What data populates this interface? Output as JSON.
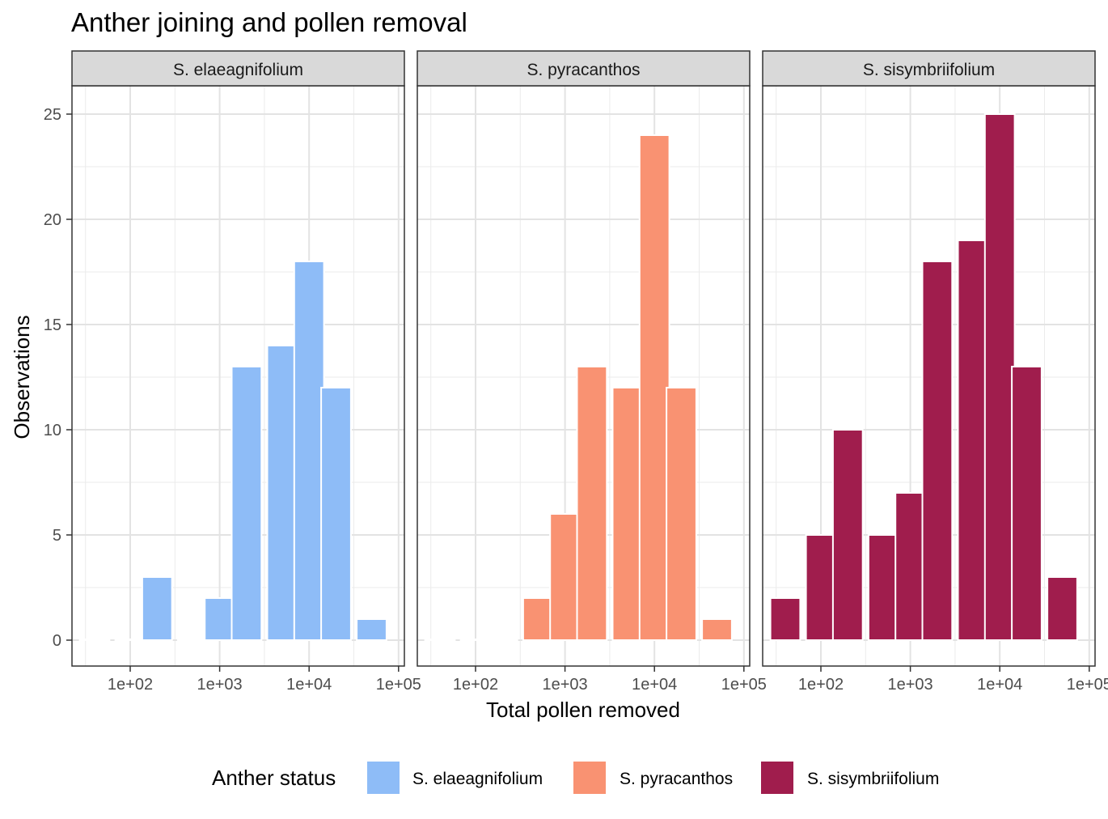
{
  "chart_data": {
    "type": "bar",
    "title": "Anther joining and pollen removal",
    "xlabel": "Total pollen removed",
    "ylabel": "Observations",
    "x_scale": "log10",
    "xlim": [
      30,
      100000
    ],
    "ylim": [
      0,
      25
    ],
    "x_ticks": [
      "1e+02",
      "1e+03",
      "1e+04",
      "1e+05"
    ],
    "y_ticks": [
      "0",
      "5",
      "10",
      "15",
      "20",
      "25"
    ],
    "grid": true,
    "legend_position": "bottom",
    "legend_title": "Anther status",
    "facets": [
      {
        "name": "S. elaeagnifolium",
        "color": "#8EBCF7",
        "bins": [
          {
            "x": 40,
            "value": 0
          },
          {
            "x": 100,
            "value": 0
          },
          {
            "x": 200,
            "value": 3
          },
          {
            "x": 500,
            "value": 0
          },
          {
            "x": 1000,
            "value": 2
          },
          {
            "x": 2000,
            "value": 13
          },
          {
            "x": 5000,
            "value": 14
          },
          {
            "x": 10000,
            "value": 18
          },
          {
            "x": 20000,
            "value": 12
          },
          {
            "x": 50000,
            "value": 1
          }
        ]
      },
      {
        "name": "S. pyracanthos",
        "color": "#F99272",
        "bins": [
          {
            "x": 40,
            "value": 0
          },
          {
            "x": 100,
            "value": 0
          },
          {
            "x": 200,
            "value": 0
          },
          {
            "x": 500,
            "value": 2
          },
          {
            "x": 1000,
            "value": 6
          },
          {
            "x": 2000,
            "value": 13
          },
          {
            "x": 5000,
            "value": 12
          },
          {
            "x": 10000,
            "value": 24
          },
          {
            "x": 20000,
            "value": 12
          },
          {
            "x": 50000,
            "value": 1
          }
        ]
      },
      {
        "name": "S. sisymbriifolium",
        "color": "#A01D4D",
        "bins": [
          {
            "x": 40,
            "value": 2
          },
          {
            "x": 100,
            "value": 5
          },
          {
            "x": 200,
            "value": 10
          },
          {
            "x": 500,
            "value": 5
          },
          {
            "x": 1000,
            "value": 7
          },
          {
            "x": 2000,
            "value": 18
          },
          {
            "x": 5000,
            "value": 19
          },
          {
            "x": 10000,
            "value": 25
          },
          {
            "x": 20000,
            "value": 13
          },
          {
            "x": 50000,
            "value": 3
          }
        ]
      }
    ]
  }
}
